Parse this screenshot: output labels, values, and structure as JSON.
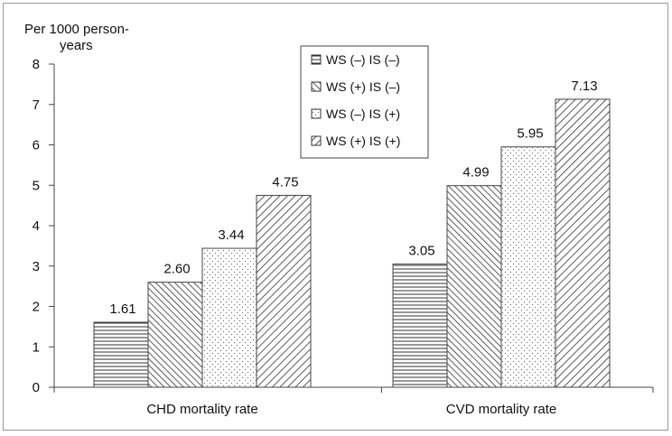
{
  "chart_data": {
    "type": "bar",
    "ylabel": "Per 1000 person-\nyears",
    "ylim": [
      0,
      8
    ],
    "yticks": [
      0,
      1,
      2,
      3,
      4,
      5,
      6,
      7,
      8
    ],
    "categories": [
      "CHD mortality rate",
      "CVD mortality rate"
    ],
    "series": [
      {
        "name": "WS (–) IS (–)",
        "values": [
          1.61,
          3.05
        ],
        "pattern": "horizontal-lines"
      },
      {
        "name": "WS (+) IS (–)",
        "values": [
          2.6,
          4.99
        ],
        "pattern": "diagonal-dense"
      },
      {
        "name": "WS (–) IS (+)",
        "values": [
          3.44,
          5.95
        ],
        "pattern": "dots"
      },
      {
        "name": "WS (+) IS (+)",
        "values": [
          4.75,
          7.13
        ],
        "pattern": "diagonal-sparse"
      }
    ],
    "data_labels": [
      [
        "1.61",
        "3.05"
      ],
      [
        "2.60",
        "4.99"
      ],
      [
        "3.44",
        "5.95"
      ],
      [
        "4.75",
        "7.13"
      ]
    ],
    "legend_position": "top-center",
    "grid": false
  }
}
